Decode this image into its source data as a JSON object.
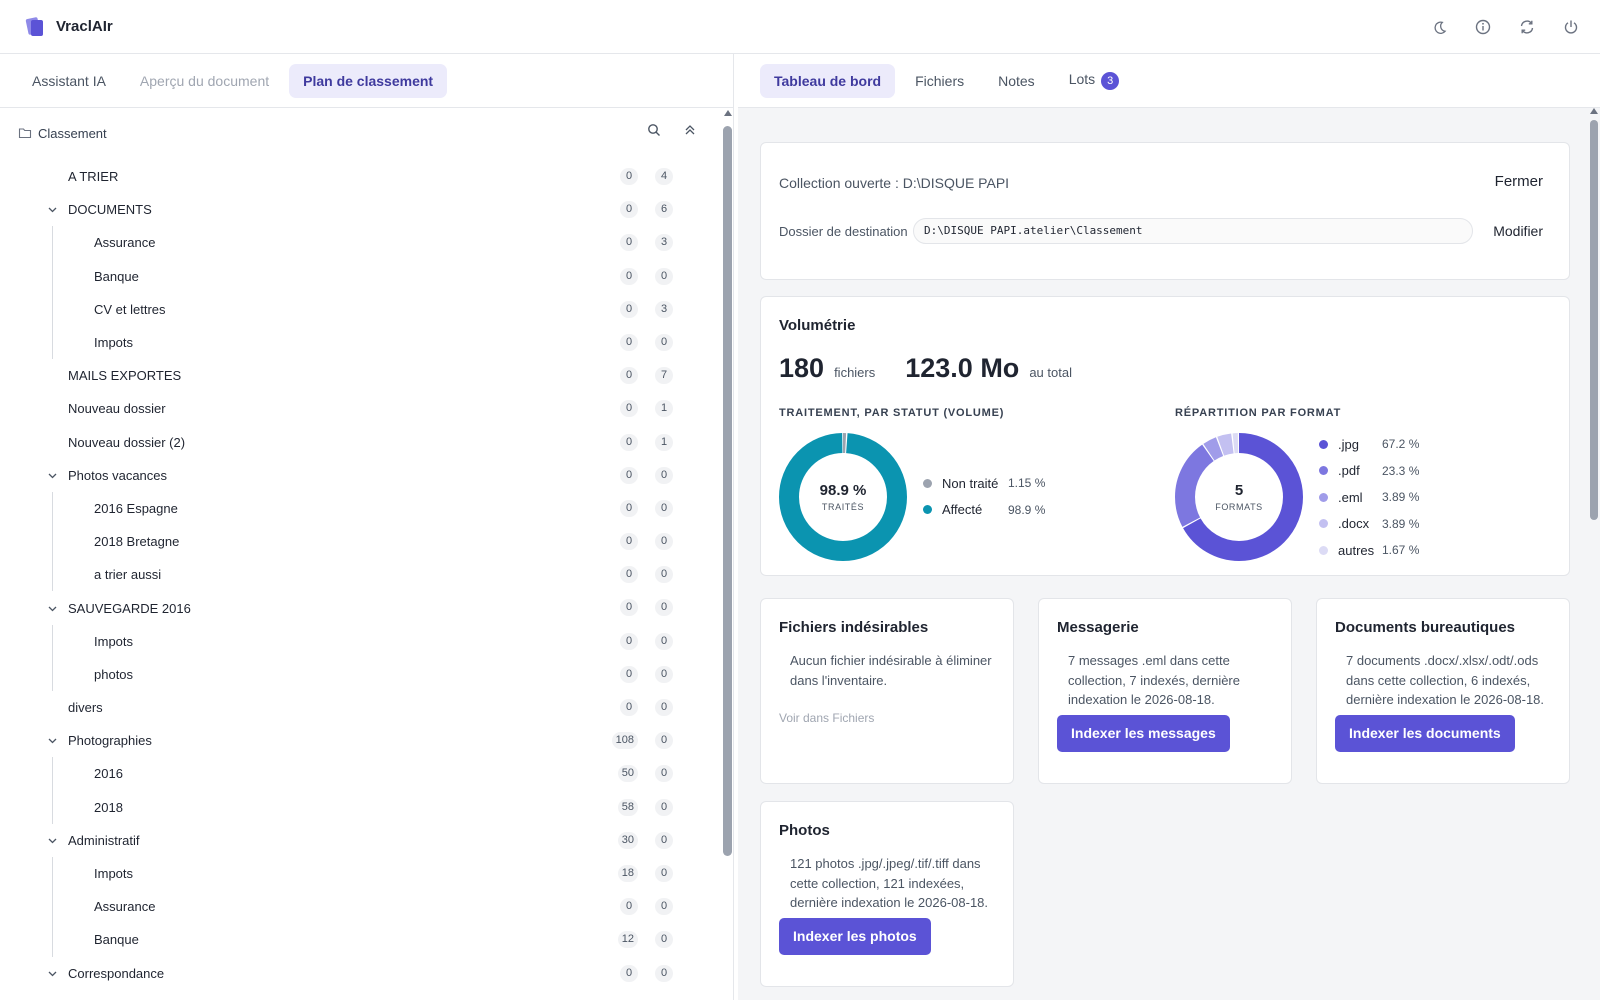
{
  "app": {
    "name": "VraclAIr"
  },
  "colors": {
    "accent": "#5b53d6",
    "teal": "#0b94b0",
    "grey_dot": "#9ca3af"
  },
  "top_actions": [
    {
      "name": "dark-mode-icon"
    },
    {
      "name": "info-icon"
    },
    {
      "name": "refresh-icon"
    },
    {
      "name": "power-icon"
    }
  ],
  "left_tabs": [
    {
      "label": "Assistant IA",
      "state": "normal"
    },
    {
      "label": "Aperçu du document",
      "state": "disabled"
    },
    {
      "label": "Plan de classement",
      "state": "active"
    }
  ],
  "tree": {
    "root_label": "Classement",
    "rows": [
      {
        "label": "A TRIER",
        "level": 0,
        "expandable": false,
        "c1": "0",
        "c2": "4"
      },
      {
        "label": "DOCUMENTS",
        "level": 0,
        "expandable": true,
        "c1": "0",
        "c2": "6"
      },
      {
        "label": "Assurance",
        "level": 1,
        "expandable": false,
        "c1": "0",
        "c2": "3"
      },
      {
        "label": "Banque",
        "level": 1,
        "expandable": false,
        "c1": "0",
        "c2": "0"
      },
      {
        "label": "CV et lettres",
        "level": 1,
        "expandable": false,
        "c1": "0",
        "c2": "3"
      },
      {
        "label": "Impots",
        "level": 1,
        "expandable": false,
        "c1": "0",
        "c2": "0"
      },
      {
        "label": "MAILS EXPORTES",
        "level": 0,
        "expandable": false,
        "c1": "0",
        "c2": "7"
      },
      {
        "label": "Nouveau dossier",
        "level": 0,
        "expandable": false,
        "c1": "0",
        "c2": "1"
      },
      {
        "label": "Nouveau dossier (2)",
        "level": 0,
        "expandable": false,
        "c1": "0",
        "c2": "1"
      },
      {
        "label": "Photos vacances",
        "level": 0,
        "expandable": true,
        "c1": "0",
        "c2": "0"
      },
      {
        "label": "2016 Espagne",
        "level": 1,
        "expandable": false,
        "c1": "0",
        "c2": "0"
      },
      {
        "label": "2018 Bretagne",
        "level": 1,
        "expandable": false,
        "c1": "0",
        "c2": "0"
      },
      {
        "label": "a trier aussi",
        "level": 1,
        "expandable": false,
        "c1": "0",
        "c2": "0"
      },
      {
        "label": "SAUVEGARDE 2016",
        "level": 0,
        "expandable": true,
        "c1": "0",
        "c2": "0"
      },
      {
        "label": "Impots",
        "level": 1,
        "expandable": false,
        "c1": "0",
        "c2": "0"
      },
      {
        "label": "photos",
        "level": 1,
        "expandable": false,
        "c1": "0",
        "c2": "0"
      },
      {
        "label": "divers",
        "level": 0,
        "expandable": false,
        "c1": "0",
        "c2": "0"
      },
      {
        "label": "Photographies",
        "level": 0,
        "expandable": true,
        "c1": "108",
        "c2": "0"
      },
      {
        "label": "2016",
        "level": 1,
        "expandable": false,
        "c1": "50",
        "c2": "0"
      },
      {
        "label": "2018",
        "level": 1,
        "expandable": false,
        "c1": "58",
        "c2": "0"
      },
      {
        "label": "Administratif",
        "level": 0,
        "expandable": true,
        "c1": "30",
        "c2": "0"
      },
      {
        "label": "Impots",
        "level": 1,
        "expandable": false,
        "c1": "18",
        "c2": "0"
      },
      {
        "label": "Assurance",
        "level": 1,
        "expandable": false,
        "c1": "0",
        "c2": "0"
      },
      {
        "label": "Banque",
        "level": 1,
        "expandable": false,
        "c1": "12",
        "c2": "0"
      },
      {
        "label": "Correspondance",
        "level": 0,
        "expandable": true,
        "c1": "0",
        "c2": "0"
      }
    ]
  },
  "right_tabs": [
    {
      "label": "Tableau de bord",
      "state": "active"
    },
    {
      "label": "Fichiers",
      "state": "normal"
    },
    {
      "label": "Notes",
      "state": "normal"
    },
    {
      "label": "Lots",
      "state": "normal",
      "badge": "3"
    }
  ],
  "collection": {
    "open_text": "Collection ouverte : D:\\DISQUE PAPI",
    "close_label": "Fermer",
    "dest_label": "Dossier de destination",
    "dest_value": "D:\\DISQUE PAPI.atelier\\Classement",
    "modify_label": "Modifier"
  },
  "volumetrie": {
    "title": "Volumétrie",
    "files_count": "180",
    "files_unit": "fichiers",
    "size": "123.0 Mo",
    "size_unit": "au total",
    "status": {
      "title": "TRAITEMENT, PAR STATUT (VOLUME)",
      "center_value": "98.9 %",
      "center_label": "TRAITÉS",
      "items": [
        {
          "name": "Non traité",
          "value": "1.15 %",
          "fraction": 0.0115,
          "color": "#9ca3af"
        },
        {
          "name": "Affecté",
          "value": "98.9 %",
          "fraction": 0.989,
          "color": "#0b94b0"
        }
      ]
    },
    "formats": {
      "title": "RÉPARTITION PAR FORMAT",
      "center_value": "5",
      "center_label": "FORMATS",
      "items": [
        {
          "name": ".jpg",
          "value": "67.2 %",
          "fraction": 0.672,
          "color": "#5b53d6"
        },
        {
          "name": ".pdf",
          "value": "23.3 %",
          "fraction": 0.233,
          "color": "#7d77e0"
        },
        {
          "name": ".eml",
          "value": "3.89 %",
          "fraction": 0.0389,
          "color": "#a09ce9"
        },
        {
          "name": ".docx",
          "value": "3.89 %",
          "fraction": 0.0389,
          "color": "#c3c0f1"
        },
        {
          "name": "autres",
          "value": "1.67 %",
          "fraction": 0.0167,
          "color": "#dcdbf5"
        }
      ]
    }
  },
  "cards": {
    "unwanted": {
      "title": "Fichiers indésirables",
      "text": "Aucun fichier indésirable à éliminer dans l'inventaire.",
      "link": "Voir dans Fichiers"
    },
    "mail": {
      "title": "Messagerie",
      "text": "7 messages .eml dans cette collection, 7 indexés, dernière indexation le 2026-08-18.",
      "button": "Indexer les messages"
    },
    "office": {
      "title": "Documents bureautiques",
      "text": "7 documents .docx/.xlsx/.odt/.ods dans cette collection, 6 indexés, dernière indexation le 2026-08-18.",
      "button": "Indexer les documents"
    },
    "photos": {
      "title": "Photos",
      "text": "121 photos .jpg/.jpeg/.tif/.tiff dans cette collection, 121 indexées, dernière indexation le 2026-08-18.",
      "button": "Indexer les photos"
    }
  }
}
